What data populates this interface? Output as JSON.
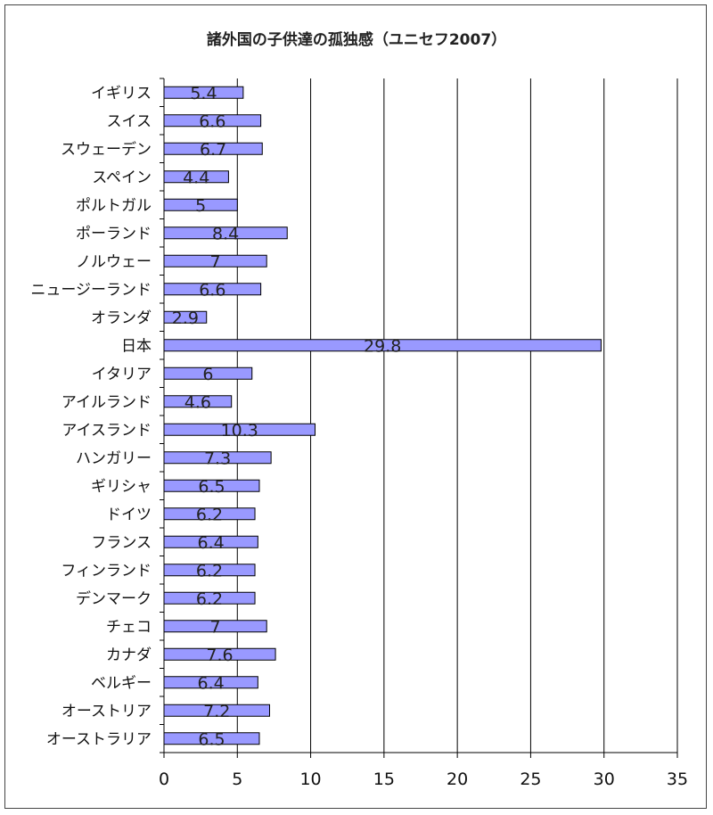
{
  "chart_data": {
    "type": "bar",
    "orientation": "horizontal",
    "title": "諸外国の子供達の孤独感（ユニセフ2007）",
    "categories": [
      "イギリス",
      "スイス",
      "スウェーデン",
      "スペイン",
      "ポルトガル",
      "ポーランド",
      "ノルウェー",
      "ニュージーランド",
      "オランダ",
      "日本",
      "イタリア",
      "アイルランド",
      "アイスランド",
      "ハンガリー",
      "ギリシャ",
      "ドイツ",
      "フランス",
      "フィンランド",
      "デンマーク",
      "チェコ",
      "カナダ",
      "ベルギー",
      "オーストリア",
      "オーストラリア"
    ],
    "values": [
      5.4,
      6.6,
      6.7,
      4.4,
      5,
      8.4,
      7,
      6.6,
      2.9,
      29.8,
      6,
      4.6,
      10.3,
      7.3,
      6.5,
      6.2,
      6.4,
      6.2,
      6.2,
      7,
      7.6,
      6.4,
      7.2,
      6.5
    ],
    "data_labels": [
      "5.4",
      "6.6",
      "6.7",
      "4.4",
      "5",
      "8.4",
      "7",
      "6.6",
      "2.9",
      "29.8",
      "6",
      "4.6",
      "10.3",
      "7.3",
      "6.5",
      "6.2",
      "6.4",
      "6.2",
      "6.2",
      "7",
      "7.6",
      "6.4",
      "7.2",
      "6.5"
    ],
    "xlim": [
      0,
      35
    ],
    "x_ticks": [
      0,
      5,
      10,
      15,
      20,
      25,
      30,
      35
    ],
    "x_tick_labels": [
      "0",
      "5",
      "10",
      "15",
      "20",
      "25",
      "30",
      "35"
    ],
    "xlabel": "",
    "ylabel": "",
    "gridlines": "vertical",
    "legend": "none",
    "colors": {
      "bar_fill": "#9999ff",
      "bar_stroke": "#000000",
      "grid": "#000000"
    }
  }
}
